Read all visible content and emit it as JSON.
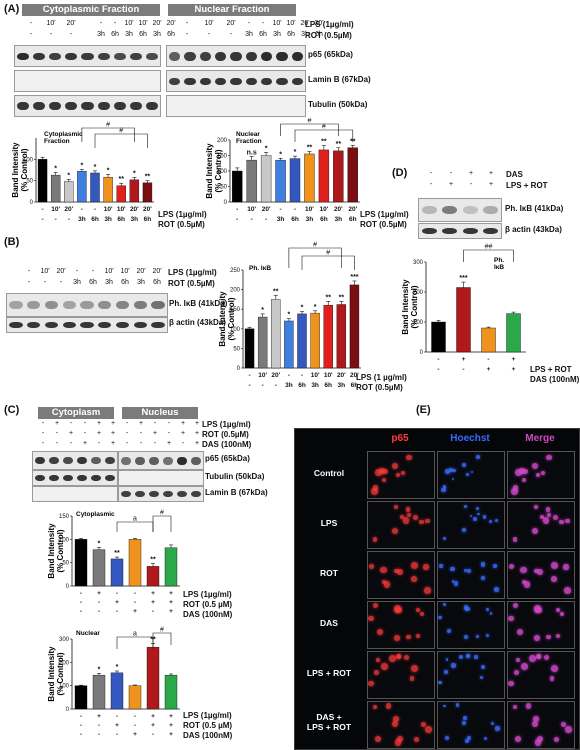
{
  "panels": {
    "A": "(A)",
    "B": "(B)",
    "C": "(C)",
    "D": "(D)",
    "E": "(E)"
  },
  "a": {
    "hdr_cyto": "Cytoplasmic Fraction",
    "hdr_nuc": "Nuclear Fraction",
    "lps_row_top": [
      "-",
      "10'",
      "20'",
      "-",
      "-",
      "10'",
      "10'",
      "20'",
      "20'"
    ],
    "rot_row_top": [
      "-",
      "-",
      "-",
      "3h",
      "6h",
      "3h",
      "6h",
      "3h",
      "6h"
    ],
    "lps_label": "LPS (1µg/ml)",
    "rot_label": "ROT (0.5µM)",
    "blot_labels": [
      "p65 (65kDa)",
      "Lamin B (67kDa)",
      "Tubulin (50kDa)"
    ]
  },
  "b": {
    "lps_row": [
      "-",
      "10'",
      "20'",
      "-",
      "-",
      "10'",
      "10'",
      "20'",
      "20'"
    ],
    "rot_row": [
      "-",
      "-",
      "-",
      "3h",
      "6h",
      "3h",
      "6h",
      "3h",
      "6h"
    ],
    "lps_label": "LPS (1µg/ml)",
    "rot_label": "ROT (0.5µM)",
    "lps_label_chart": "LPS (1 µg/ml)",
    "rot_label_chart": "ROT (0.5µM)",
    "blot_labels": [
      "Ph. IκB (41kDa)",
      "β actin (43kDa)"
    ]
  },
  "c": {
    "hdr_cyto": "Cytoplasm",
    "hdr_nuc": "Nucleus",
    "lps_label": "LPS (1µg/ml)",
    "rot_label": "ROT (0.5µM)",
    "das_label": "DAS (100nM)",
    "lps_row": [
      "-",
      "+",
      "-",
      "-",
      "+",
      "+"
    ],
    "rot_row": [
      "-",
      "-",
      "+",
      "-",
      "+",
      "+"
    ],
    "das_row": [
      "-",
      "-",
      "-",
      "+",
      "-",
      "+"
    ],
    "blot_labels": [
      "p65 (65kDa)",
      "Tubulin (50kDa)",
      "Lamin B (67kDa)"
    ],
    "chart_lps": "LPS (1µg/ml)",
    "chart_rot": "ROT (0.5 µM)",
    "chart_das": "DAS (100nM)"
  },
  "d": {
    "das_label": "DAS",
    "lpsrot_label": "LPS + ROT",
    "das_row": [
      "-",
      "-",
      "+",
      "+"
    ],
    "lpsrot_row": [
      "-",
      "+",
      "-",
      "+"
    ],
    "blot_labels": [
      "Ph. IκB (41kDa)",
      "β actin (43kDa)"
    ],
    "legend_lpsrot": "LPS + ROT",
    "legend_das": "DAS (100nM)"
  },
  "e": {
    "col_headers": [
      "p65",
      "Hoechst",
      "Merge"
    ],
    "row_labels": [
      "Control",
      "LPS",
      "ROT",
      "DAS",
      "LPS + ROT",
      "DAS +\nLPS + ROT"
    ],
    "colors": {
      "p65": "#ff3b3b",
      "hoechst": "#3a6bff",
      "merge": "#d048c8"
    }
  },
  "colors": {
    "black": "#000000",
    "gray1": "#7a7a7a",
    "gray2": "#c8c8c8",
    "blue1": "#3f7fe0",
    "blue2": "#3458c0",
    "orange": "#f0921e",
    "red": "#e0201c",
    "darkred1": "#b0191c",
    "darkred2": "#7a0e12",
    "green": "#2aa84a"
  },
  "chart_data": [
    {
      "id": "A-cyto",
      "type": "bar",
      "title": "Cytoplasmic\nFraction",
      "ylabel": "Band Intensity\n(% Control)",
      "ylim": [
        0,
        150
      ],
      "yticks": [
        0,
        50,
        100
      ],
      "lps": [
        "-",
        "10'",
        "20'",
        "-",
        "-",
        "10'",
        "10'",
        "20'",
        "20'"
      ],
      "rot": [
        "-",
        "-",
        "-",
        "3h",
        "6h",
        "3h",
        "6h",
        "3h",
        "6h"
      ],
      "values": [
        100,
        63,
        48,
        72,
        68,
        58,
        38,
        52,
        45
      ],
      "errors": [
        5,
        6,
        5,
        4,
        5,
        7,
        6,
        5,
        5
      ],
      "sig": [
        "",
        "*",
        "*",
        "*",
        "*",
        "*",
        "**",
        "*",
        "**"
      ],
      "brackets": [
        "#",
        "#"
      ]
    },
    {
      "id": "A-nuc",
      "type": "bar",
      "title": "Nuclear\nFraction",
      "ylabel": "Band Intensity\n(% Control)",
      "ylim": [
        0,
        200
      ],
      "yticks": [
        0,
        50,
        100,
        150,
        200
      ],
      "lps": [
        "-",
        "10'",
        "20'",
        "-",
        "-",
        "10'",
        "10'",
        "20'",
        "20'"
      ],
      "rot": [
        "-",
        "-",
        "-",
        "3h",
        "6h",
        "3h",
        "6h",
        "3h",
        "6h"
      ],
      "values": [
        100,
        135,
        150,
        135,
        140,
        155,
        168,
        165,
        175
      ],
      "errors": [
        10,
        12,
        10,
        6,
        8,
        8,
        14,
        10,
        8
      ],
      "sig": [
        "",
        "n.s",
        "*",
        "*",
        "*",
        "**",
        "**",
        "**",
        "**"
      ],
      "brackets": [
        "#",
        "#"
      ]
    },
    {
      "id": "B",
      "type": "bar",
      "title": "Ph. IκB",
      "ylabel": "Band Intensity\n(% Control)",
      "ylim": [
        0,
        250
      ],
      "yticks": [
        0,
        50,
        100,
        150,
        200,
        250
      ],
      "lps": [
        "-",
        "10'",
        "20'",
        "-",
        "-",
        "10'",
        "10'",
        "20'",
        "20'"
      ],
      "rot": [
        "-",
        "-",
        "-",
        "3h",
        "6h",
        "3h",
        "6h",
        "3h",
        "6h"
      ],
      "values": [
        100,
        130,
        175,
        120,
        138,
        140,
        160,
        162,
        212
      ],
      "errors": [
        4,
        8,
        10,
        6,
        6,
        6,
        10,
        8,
        10
      ],
      "sig": [
        "",
        "*",
        "**",
        "*",
        "*",
        "*",
        "**",
        "**",
        "***"
      ],
      "brackets": [
        "#",
        "#"
      ]
    },
    {
      "id": "C-cyto",
      "type": "bar",
      "title": "Cytoplasmic",
      "ylabel": "Band Intensity\n(% Control)",
      "ylim": [
        0,
        150
      ],
      "yticks": [
        0,
        50,
        100,
        150
      ],
      "lps": [
        "-",
        "+",
        "-",
        "-",
        "+",
        "+"
      ],
      "rot": [
        "-",
        "-",
        "+",
        "-",
        "+",
        "+"
      ],
      "das": [
        "-",
        "-",
        "-",
        "+",
        "-",
        "+"
      ],
      "values": [
        100,
        78,
        58,
        100,
        42,
        82
      ],
      "errors": [
        2,
        5,
        4,
        2,
        6,
        6
      ],
      "sig": [
        "",
        "*",
        "**",
        "",
        "**",
        ""
      ],
      "brackets": [
        "a",
        "#"
      ]
    },
    {
      "id": "C-nuc",
      "type": "bar",
      "title": "Nuclear",
      "ylabel": "Band Intensity\n(% Control)",
      "ylim": [
        0,
        300
      ],
      "yticks": [
        0,
        100,
        200,
        300
      ],
      "lps": [
        "-",
        "+",
        "-",
        "-",
        "+",
        "+"
      ],
      "rot": [
        "-",
        "-",
        "+",
        "-",
        "+",
        "+"
      ],
      "das": [
        "-",
        "-",
        "-",
        "+",
        "-",
        "+"
      ],
      "values": [
        100,
        145,
        155,
        100,
        265,
        145
      ],
      "errors": [
        2,
        8,
        8,
        3,
        15,
        5
      ],
      "sig": [
        "",
        "*",
        "*",
        "",
        "**",
        ""
      ],
      "brackets": [
        "a",
        "#"
      ]
    },
    {
      "id": "D",
      "type": "bar",
      "title": "Ph.\nIκB",
      "ylabel": "Band Intensity\n(% Control)",
      "ylim": [
        0,
        300
      ],
      "yticks": [
        0,
        100,
        200,
        300
      ],
      "lpsrot": [
        "-",
        "+",
        "-",
        "+"
      ],
      "das": [
        "-",
        "-",
        "+",
        "+"
      ],
      "values": [
        100,
        215,
        80,
        128
      ],
      "errors": [
        5,
        18,
        3,
        5
      ],
      "sig": [
        "",
        "***",
        "",
        ""
      ],
      "brackets": [
        "##"
      ]
    }
  ]
}
